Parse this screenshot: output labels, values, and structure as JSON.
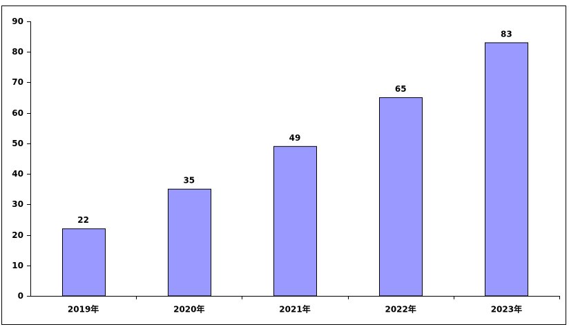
{
  "chart_data": {
    "type": "bar",
    "categories": [
      "2019年",
      "2020年",
      "2021年",
      "2022年",
      "2023年"
    ],
    "values": [
      22,
      35,
      49,
      65,
      83
    ],
    "color": "#9999ff",
    "ylim": [
      0,
      90
    ],
    "yticks": [
      0,
      10,
      20,
      30,
      40,
      50,
      60,
      70,
      80,
      90
    ],
    "grid": false
  }
}
